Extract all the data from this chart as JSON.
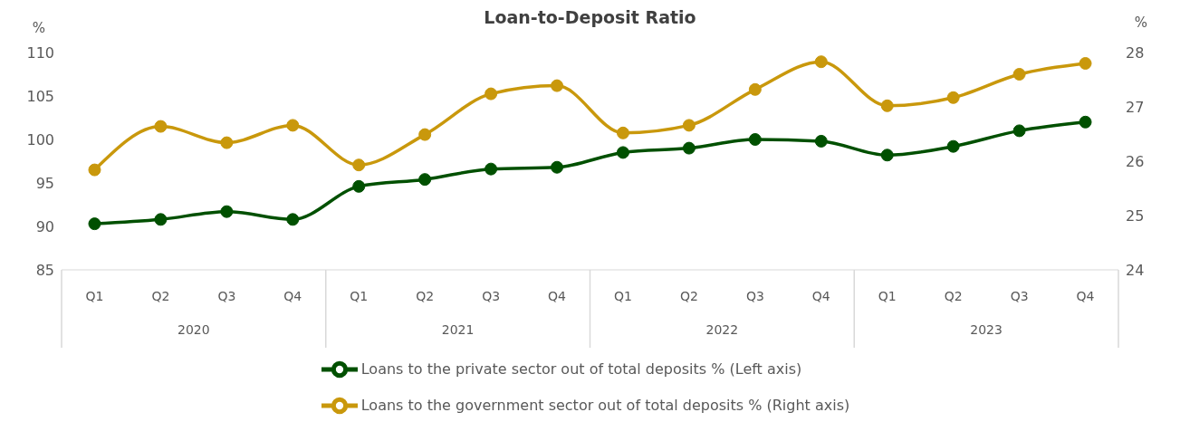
{
  "chart_data": {
    "type": "line",
    "title": "Loan-to-Deposit Ratio",
    "ylabel": "%",
    "y2label": "%",
    "categories": [
      "Q1",
      "Q2",
      "Q3",
      "Q4",
      "Q1",
      "Q2",
      "Q3",
      "Q4",
      "Q1",
      "Q2",
      "Q3",
      "Q4",
      "Q1",
      "Q2",
      "Q3",
      "Q4"
    ],
    "annotations": [
      "2020",
      "2021",
      "2022",
      "2023"
    ],
    "series": [
      {
        "name": "Loans to the private sector out of total deposits % (Left axis)",
        "color": "#005000",
        "values": [
          90.3,
          90.8,
          91.7,
          90.8,
          94.6,
          95.4,
          96.6,
          96.8,
          98.5,
          99.0,
          100.0,
          99.8,
          98.2,
          99.2,
          101.0,
          102.0
        ]
      },
      {
        "name": "Loans to the government sector out of total deposits % (Right axis)",
        "color": "#c9980c",
        "axis": "y2",
        "values": [
          25.84,
          26.64,
          26.34,
          26.66,
          25.93,
          26.49,
          27.24,
          27.39,
          26.52,
          26.66,
          27.32,
          27.83,
          27.02,
          27.17,
          27.6,
          27.8
        ]
      }
    ],
    "ylim": [
      85,
      110
    ],
    "yticks": [
      85,
      90,
      95,
      100,
      105,
      110
    ],
    "y2lim": [
      24,
      28
    ],
    "y2ticks": [
      24,
      25,
      26,
      27,
      28
    ],
    "legend": "bottom",
    "marker": "circle",
    "line_style": "solid"
  }
}
